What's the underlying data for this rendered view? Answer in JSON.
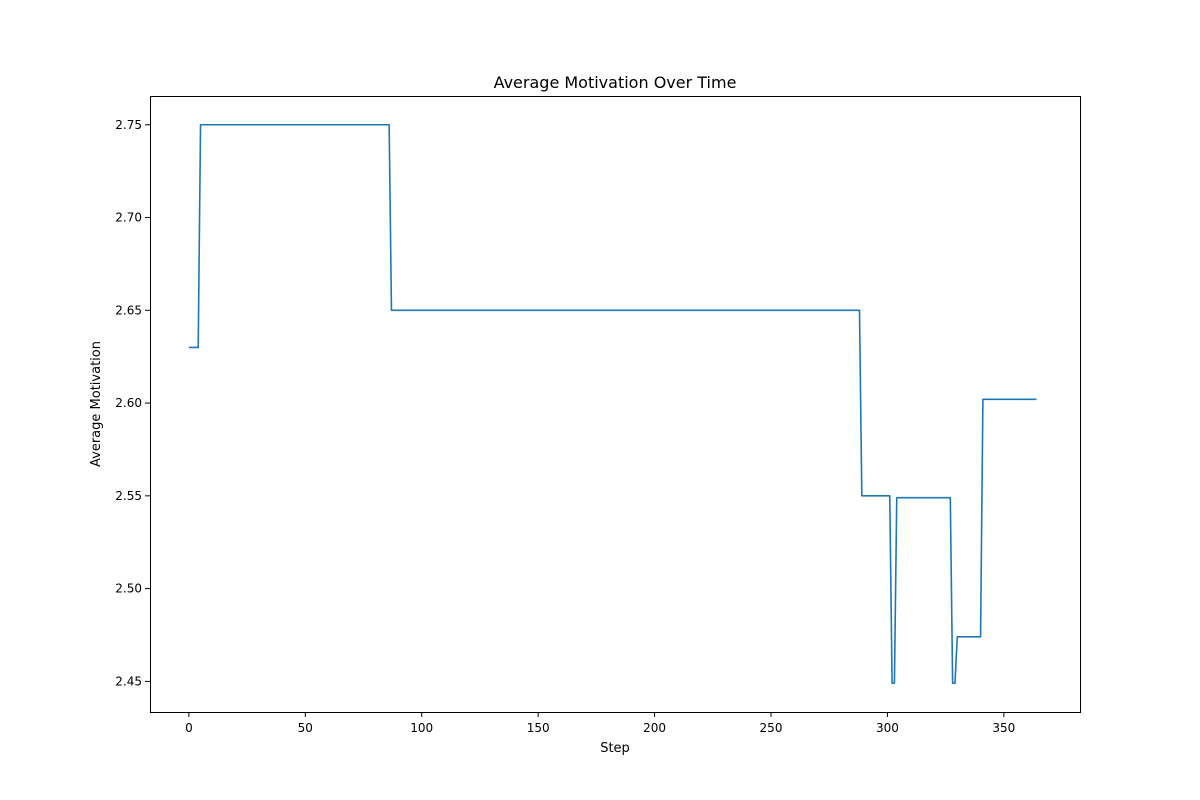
{
  "chart_data": {
    "type": "line",
    "title": "Average Motivation Over Time",
    "xlabel": "Step",
    "ylabel": "Average Motivation",
    "xlim": [
      -16.7,
      382.7
    ],
    "ylim": [
      2.4335,
      2.7655
    ],
    "x_ticks": [
      0,
      50,
      100,
      150,
      200,
      250,
      300,
      350
    ],
    "y_ticks": [
      2.45,
      2.5,
      2.55,
      2.6,
      2.65,
      2.7,
      2.75
    ],
    "x_tick_labels": [
      "0",
      "50",
      "100",
      "150",
      "200",
      "250",
      "300",
      "350"
    ],
    "y_tick_labels": [
      "2.45",
      "2.50",
      "2.55",
      "2.60",
      "2.65",
      "2.70",
      "2.75"
    ],
    "grid": false,
    "series": [
      {
        "color": "#1f77b4",
        "points": [
          [
            0,
            2.63
          ],
          [
            4,
            2.63
          ],
          [
            5,
            2.75
          ],
          [
            86,
            2.75
          ],
          [
            87,
            2.65
          ],
          [
            288,
            2.65
          ],
          [
            289,
            2.55
          ],
          [
            301,
            2.55
          ],
          [
            302,
            2.449
          ],
          [
            303,
            2.449
          ],
          [
            304,
            2.549
          ],
          [
            327,
            2.549
          ],
          [
            328,
            2.449
          ],
          [
            329,
            2.449
          ],
          [
            330,
            2.474
          ],
          [
            340,
            2.474
          ],
          [
            341,
            2.602
          ],
          [
            364,
            2.602
          ]
        ]
      }
    ]
  }
}
